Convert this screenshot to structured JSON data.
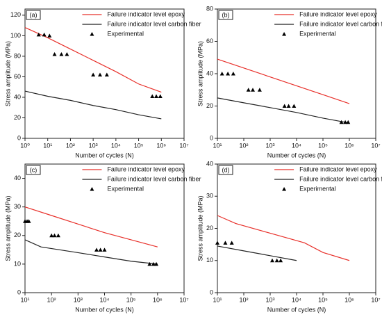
{
  "chart_data": [
    {
      "type": "line",
      "label": "(a)",
      "xlabel": "Number of cycles (N)",
      "ylabel": "Stress amplitude (MPa)",
      "xscale": "log",
      "legend": "upper right",
      "xlim": [
        1,
        10000000
      ],
      "ylim": [
        0,
        126
      ],
      "xticks": [
        {
          "value": 1,
          "label": "10⁰"
        },
        {
          "value": 10,
          "label": "10¹"
        },
        {
          "value": 100,
          "label": "10²"
        },
        {
          "value": 1000,
          "label": "10³"
        },
        {
          "value": 10000,
          "label": "10⁴"
        },
        {
          "value": 100000,
          "label": "10⁵"
        },
        {
          "value": 1000000,
          "label": "10⁶"
        },
        {
          "value": 10000000,
          "label": "10⁷"
        }
      ],
      "yticks": [
        0,
        20,
        40,
        60,
        80,
        100,
        120
      ],
      "series": [
        {
          "name": "Failure indicator level epoxy",
          "mode": "line",
          "color": "#e8302a",
          "x": [
            1,
            10,
            100,
            1000,
            10000,
            100000,
            1000000
          ],
          "values": [
            108,
            98,
            87,
            76,
            65,
            53,
            45
          ]
        },
        {
          "name": "Failure indicator level carbon fiber",
          "mode": "line",
          "color": "#222222",
          "x": [
            1,
            10,
            100,
            1000,
            10000,
            100000,
            1000000
          ],
          "values": [
            46,
            41,
            37,
            32,
            28,
            23,
            19
          ]
        },
        {
          "name": "Experimental",
          "mode": "markers",
          "color": "#000000",
          "x": [
            4,
            7,
            12,
            20,
            40,
            70,
            1000,
            2000,
            4000,
            400000,
            600000,
            900000
          ],
          "values": [
            101,
            101,
            100,
            82,
            82,
            82,
            62,
            62,
            62,
            41,
            41,
            41
          ]
        }
      ]
    },
    {
      "type": "line",
      "label": "(b)",
      "xlabel": "Number of cycles (N)",
      "ylabel": "Stress amplitude (MPa)",
      "xscale": "log",
      "legend": "upper right",
      "xlim": [
        10,
        10000000
      ],
      "ylim": [
        0,
        80
      ],
      "xticks": [
        {
          "value": 10,
          "label": "10¹"
        },
        {
          "value": 100,
          "label": "10²"
        },
        {
          "value": 1000,
          "label": "10³"
        },
        {
          "value": 10000,
          "label": "10⁴"
        },
        {
          "value": 100000,
          "label": "10⁵"
        },
        {
          "value": 1000000,
          "label": "10⁶"
        },
        {
          "value": 10000000,
          "label": "10⁷"
        }
      ],
      "yticks": [
        0,
        20,
        40,
        60,
        80
      ],
      "series": [
        {
          "name": "Failure indicator level epoxy",
          "mode": "line",
          "color": "#e8302a",
          "x": [
            10,
            100,
            1000,
            10000,
            100000,
            1000000
          ],
          "values": [
            49,
            43.5,
            38,
            32.5,
            27,
            21.5
          ]
        },
        {
          "name": "Failure indicator level carbon fiber",
          "mode": "line",
          "color": "#222222",
          "x": [
            10,
            100,
            1000,
            10000,
            100000,
            1000000
          ],
          "values": [
            25,
            22,
            19,
            16,
            12.5,
            9.5
          ]
        },
        {
          "name": "Experimental",
          "mode": "markers",
          "color": "#000000",
          "x": [
            15,
            25,
            40,
            150,
            220,
            400,
            3500,
            5000,
            8000,
            500000,
            700000,
            900000
          ],
          "values": [
            40,
            40,
            40,
            30,
            30,
            30,
            20,
            20,
            20,
            10,
            10,
            10
          ]
        }
      ]
    },
    {
      "type": "line",
      "label": "(c)",
      "xlabel": "Number of cycles (N)",
      "ylabel": "Stress amplitude (MPa)",
      "xscale": "log",
      "legend": "upper right",
      "xlim": [
        10,
        10000000
      ],
      "ylim": [
        0,
        45
      ],
      "xticks": [
        {
          "value": 10,
          "label": "10¹"
        },
        {
          "value": 100,
          "label": "10²"
        },
        {
          "value": 1000,
          "label": "10³"
        },
        {
          "value": 10000,
          "label": "10⁴"
        },
        {
          "value": 100000,
          "label": "10⁵"
        },
        {
          "value": 1000000,
          "label": "10⁶"
        },
        {
          "value": 10000000,
          "label": "10⁷"
        }
      ],
      "yticks": [
        0,
        10,
        20,
        30,
        40
      ],
      "series": [
        {
          "name": "Failure indicator level epoxy",
          "mode": "line",
          "color": "#e8302a",
          "x": [
            10,
            100,
            1000,
            10000,
            100000,
            1000000
          ],
          "values": [
            30,
            27,
            24,
            21,
            18.5,
            16
          ]
        },
        {
          "name": "Failure indicator level carbon fiber",
          "mode": "line",
          "color": "#222222",
          "x": [
            10,
            40,
            1000,
            10000,
            100000,
            1000000
          ],
          "values": [
            18.5,
            16,
            14,
            12.5,
            11,
            10
          ]
        },
        {
          "name": "Experimental",
          "mode": "markers",
          "color": "#000000",
          "x": [
            10,
            12,
            14,
            100,
            130,
            180,
            5000,
            7000,
            10000,
            500000,
            700000,
            900000
          ],
          "values": [
            25,
            25,
            25,
            20,
            20,
            20,
            15,
            15,
            15,
            10,
            10,
            10
          ]
        }
      ]
    },
    {
      "type": "line",
      "label": "(d)",
      "xlabel": "Number of cycles (N)",
      "ylabel": "Stress amplitude (MPa)",
      "xscale": "log",
      "legend": "upper right",
      "xlim": [
        10,
        10000000
      ],
      "ylim": [
        0,
        40
      ],
      "xticks": [
        {
          "value": 10,
          "label": "10¹"
        },
        {
          "value": 100,
          "label": "10²"
        },
        {
          "value": 1000,
          "label": "10³"
        },
        {
          "value": 10000,
          "label": "10⁴"
        },
        {
          "value": 100000,
          "label": "10⁵"
        },
        {
          "value": 1000000,
          "label": "10⁶"
        },
        {
          "value": 10000000,
          "label": "10⁷"
        }
      ],
      "yticks": [
        0,
        10,
        20,
        30,
        40
      ],
      "series": [
        {
          "name": "Failure indicator level epoxy",
          "mode": "line",
          "color": "#e8302a",
          "x": [
            10,
            50,
            1000,
            20000,
            100000,
            1000000
          ],
          "values": [
            24,
            21.5,
            18.5,
            15.5,
            12.5,
            10
          ]
        },
        {
          "name": "Failure indicator level carbon fiber",
          "mode": "line",
          "color": "#222222",
          "x": [
            10,
            100,
            1000,
            10000
          ],
          "values": [
            14.5,
            13,
            11.5,
            10
          ]
        },
        {
          "name": "Experimental",
          "mode": "markers",
          "color": "#000000",
          "x": [
            10,
            20,
            35,
            1200,
            1800,
            2500
          ],
          "values": [
            15.5,
            15.5,
            15.5,
            10,
            10,
            10
          ]
        }
      ]
    }
  ]
}
